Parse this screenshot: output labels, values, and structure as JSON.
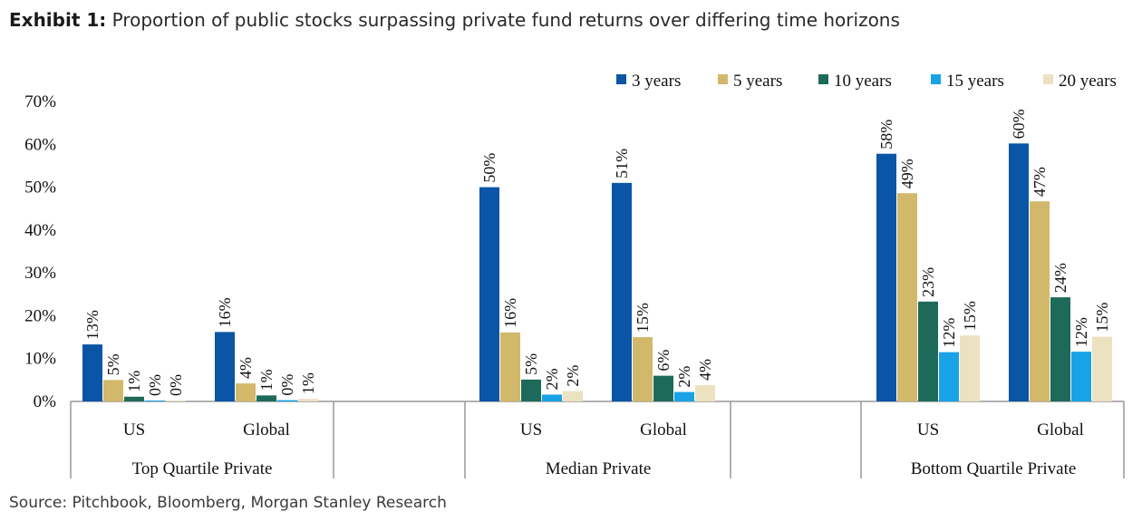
{
  "title": {
    "label": "Exhibit 1:",
    "text": "Proportion of public stocks surpassing private fund returns over differing time horizons"
  },
  "source": "Source: Pitchbook, Bloomberg, Morgan Stanley Research",
  "chart_data": {
    "type": "bar",
    "groups": [
      {
        "name": "Top Quartile Private",
        "categories": [
          "US",
          "Global"
        ]
      },
      {
        "name": "Median Private",
        "categories": [
          "US",
          "Global"
        ]
      },
      {
        "name": "Bottom Quartile Private",
        "categories": [
          "US",
          "Global"
        ]
      }
    ],
    "series": [
      {
        "name": "3 years",
        "color": "#0a55a6",
        "values": [
          13,
          16,
          50,
          51,
          58,
          60
        ]
      },
      {
        "name": "5 years",
        "color": "#d2b86a",
        "values": [
          5,
          4,
          16,
          15,
          49,
          47
        ]
      },
      {
        "name": "10 years",
        "color": "#1e6a5a",
        "values": [
          1,
          1,
          5,
          6,
          23,
          24
        ]
      },
      {
        "name": "15 years",
        "color": "#19a3e6",
        "values": [
          0,
          0,
          2,
          2,
          12,
          12
        ]
      },
      {
        "name": "20 years",
        "color": "#ece1c1",
        "values": [
          0,
          1,
          2,
          4,
          15,
          15
        ]
      }
    ],
    "plot_values": [
      [
        13.3,
        16.2,
        50,
        51,
        57.8,
        60.2
      ],
      [
        5,
        4.2,
        16.1,
        15,
        48.6,
        46.7
      ],
      [
        1.1,
        1.4,
        5.1,
        6,
        23.3,
        24.3
      ],
      [
        0.2,
        0.3,
        1.6,
        2.2,
        11.5,
        11.6
      ],
      [
        0.2,
        0.6,
        2.4,
        3.8,
        15.4,
        15.1
      ]
    ],
    "value_labels": [
      [
        "13%",
        "16%",
        "50%",
        "51%",
        "58%",
        "60%"
      ],
      [
        "5%",
        "4%",
        "16%",
        "15%",
        "49%",
        "47%"
      ],
      [
        "1%",
        "1%",
        "5%",
        "6%",
        "23%",
        "24%"
      ],
      [
        "0%",
        "0%",
        "2%",
        "2%",
        "12%",
        "12%"
      ],
      [
        "0%",
        "1%",
        "2%",
        "4%",
        "15%",
        "15%"
      ]
    ],
    "ylim": [
      0,
      70
    ],
    "yticks": [
      0,
      10,
      20,
      30,
      40,
      50,
      60,
      70
    ],
    "ytick_labels": [
      "0%",
      "10%",
      "20%",
      "30%",
      "40%",
      "50%",
      "60%",
      "70%"
    ],
    "legend_position": "top-right",
    "grid": false
  }
}
